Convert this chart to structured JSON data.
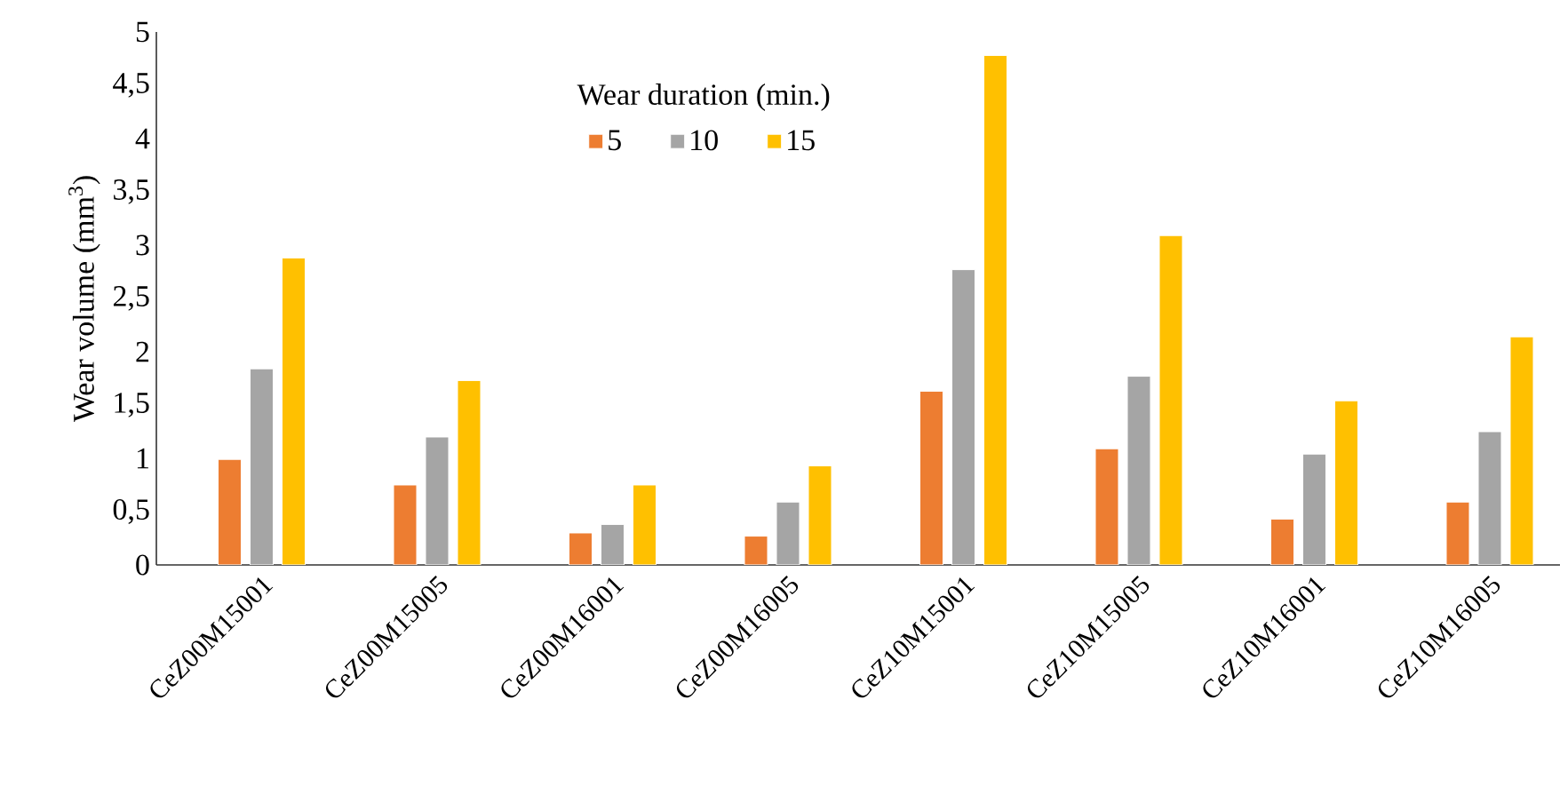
{
  "chart_data": {
    "type": "bar",
    "ylabel": "Wear volume  (mm$^{3}$)",
    "legend_title": "Wear duration (min.)",
    "legend": "top",
    "categories": [
      "CeZ00M15001",
      "CeZ00M15005",
      "CeZ00M16001",
      "CeZ00M16005",
      "CeZ10M15001",
      "CeZ10M15005",
      "CeZ10M16001",
      "CeZ10M16005"
    ],
    "series": [
      {
        "name": "5",
        "color": "#ed7d31",
        "values": [
          0.99,
          0.75,
          0.3,
          0.27,
          1.63,
          1.09,
          0.43,
          0.59
        ]
      },
      {
        "name": "10",
        "color": "#a5a5a5",
        "values": [
          1.84,
          1.2,
          0.38,
          0.59,
          2.77,
          1.77,
          1.04,
          1.25
        ]
      },
      {
        "name": "15",
        "color": "#ffc000",
        "values": [
          2.88,
          1.73,
          0.75,
          0.93,
          4.78,
          3.09,
          1.54,
          2.14
        ]
      }
    ],
    "ylim": [
      0,
      5
    ],
    "yticks": [
      0,
      {
        "value": 0.5,
        "label": "0,5"
      },
      1,
      {
        "value": 1.5,
        "label": "1,5"
      },
      2,
      {
        "value": 2.5,
        "label": "2,5"
      },
      3,
      {
        "value": 3.5,
        "label": "3,5"
      },
      4,
      {
        "value": 4.5,
        "label": "4,5"
      },
      5
    ],
    "grid": false
  }
}
